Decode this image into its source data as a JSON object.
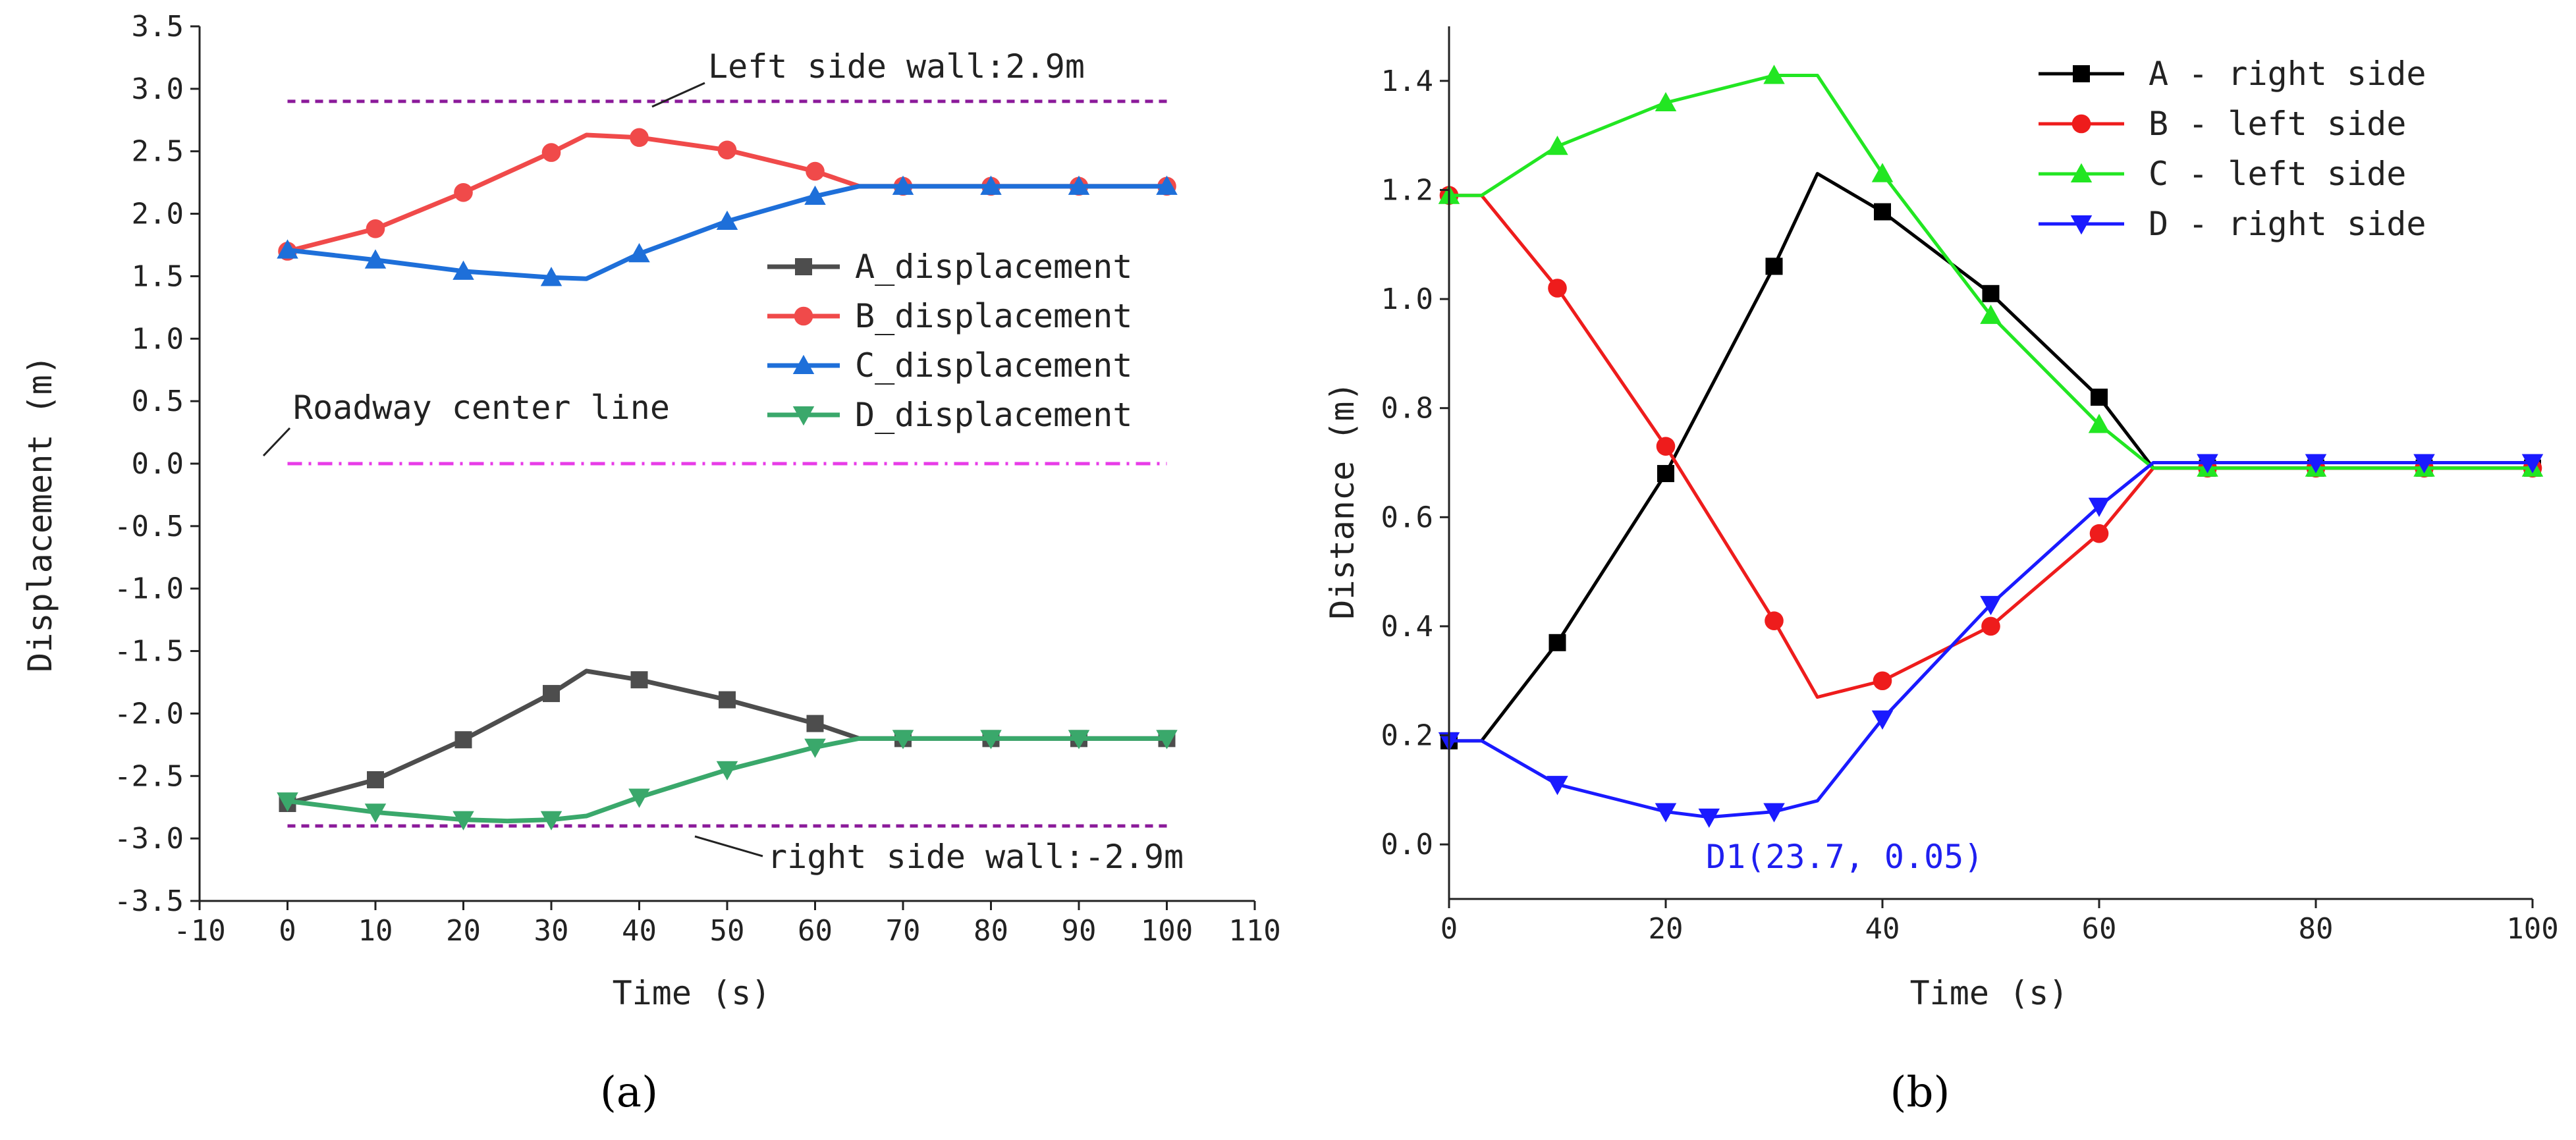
{
  "chart_data": [
    {
      "type": "line",
      "panel_label": "(a)",
      "xlabel": "Time (s)",
      "ylabel": "Displacement (m)",
      "xlim": [
        -10,
        110
      ],
      "ylim": [
        -3.5,
        3.5
      ],
      "xticks": [
        -10,
        0,
        10,
        20,
        30,
        40,
        50,
        60,
        70,
        80,
        90,
        100,
        110
      ],
      "yticks": [
        -3.5,
        -3.0,
        -2.5,
        -2.0,
        -1.5,
        -1.0,
        -0.5,
        0.0,
        0.5,
        1.0,
        1.5,
        2.0,
        2.5,
        3.0,
        3.5
      ],
      "reference_lines": [
        {
          "name": "Left side wall:2.9m",
          "y": 2.9,
          "color": "#8b1a9a"
        },
        {
          "name": "Roadway center line",
          "y": 0.0,
          "color": "#e83ce8"
        },
        {
          "name": "right side wall:-2.9m",
          "y": -2.9,
          "color": "#8b1a9a"
        }
      ],
      "legend_position": "center-right",
      "series": [
        {
          "name": "A_displacement",
          "color": "#4d4d4d",
          "marker": "square",
          "curve_x": [
            0,
            10,
            20,
            30,
            34,
            40,
            50,
            60,
            65,
            70,
            80,
            90,
            100
          ],
          "curve_y": [
            -2.72,
            -2.53,
            -2.21,
            -1.84,
            -1.66,
            -1.73,
            -1.89,
            -2.08,
            -2.2,
            -2.2,
            -2.2,
            -2.2,
            -2.2
          ],
          "marker_x": [
            0,
            10,
            20,
            30,
            40,
            50,
            60,
            70,
            80,
            90,
            100
          ],
          "marker_y": [
            -2.72,
            -2.53,
            -2.21,
            -1.84,
            -1.73,
            -1.89,
            -2.08,
            -2.2,
            -2.2,
            -2.2,
            -2.2
          ]
        },
        {
          "name": "B_displacement",
          "color": "#f04a4a",
          "marker": "circle",
          "curve_x": [
            0,
            10,
            20,
            30,
            34,
            40,
            50,
            60,
            65,
            70,
            80,
            90,
            100
          ],
          "curve_y": [
            1.7,
            1.88,
            2.17,
            2.49,
            2.63,
            2.61,
            2.51,
            2.34,
            2.22,
            2.22,
            2.22,
            2.22,
            2.22
          ],
          "marker_x": [
            0,
            10,
            20,
            30,
            40,
            50,
            60,
            70,
            80,
            90,
            100
          ],
          "marker_y": [
            1.7,
            1.88,
            2.17,
            2.49,
            2.61,
            2.51,
            2.34,
            2.22,
            2.22,
            2.22,
            2.22
          ]
        },
        {
          "name": "C_displacement",
          "color": "#1e6fd9",
          "marker": "triangle-up",
          "curve_x": [
            0,
            10,
            20,
            30,
            34,
            40,
            50,
            60,
            65,
            70,
            80,
            90,
            100
          ],
          "curve_y": [
            1.71,
            1.63,
            1.54,
            1.49,
            1.48,
            1.68,
            1.94,
            2.14,
            2.22,
            2.22,
            2.22,
            2.22,
            2.22
          ],
          "marker_x": [
            0,
            10,
            20,
            30,
            40,
            50,
            60,
            70,
            80,
            90,
            100
          ],
          "marker_y": [
            1.71,
            1.63,
            1.54,
            1.49,
            1.68,
            1.94,
            2.14,
            2.22,
            2.22,
            2.22,
            2.22
          ]
        },
        {
          "name": "D_displacement",
          "color": "#3aa86b",
          "marker": "triangle-down",
          "curve_x": [
            0,
            10,
            20,
            25,
            30,
            34,
            40,
            50,
            60,
            65,
            70,
            80,
            90,
            100
          ],
          "curve_y": [
            -2.7,
            -2.79,
            -2.85,
            -2.86,
            -2.85,
            -2.82,
            -2.67,
            -2.45,
            -2.27,
            -2.2,
            -2.2,
            -2.2,
            -2.2,
            -2.2
          ],
          "marker_x": [
            0,
            10,
            20,
            30,
            40,
            50,
            60,
            70,
            80,
            90,
            100
          ],
          "marker_y": [
            -2.7,
            -2.79,
            -2.85,
            -2.85,
            -2.67,
            -2.45,
            -2.27,
            -2.2,
            -2.2,
            -2.2,
            -2.2
          ]
        }
      ]
    },
    {
      "type": "line",
      "panel_label": "(b)",
      "xlabel": "Time (s)",
      "ylabel": "Distance (m)",
      "xlim": [
        0,
        100
      ],
      "ylim": [
        -0.1,
        1.5
      ],
      "xticks": [
        0,
        20,
        40,
        60,
        80,
        100
      ],
      "yticks": [
        0.0,
        0.2,
        0.4,
        0.6,
        0.8,
        1.0,
        1.2,
        1.4
      ],
      "annotations": [
        {
          "text": "D1(23.7, 0.05)",
          "x": 23.7,
          "y": 0.05
        }
      ],
      "legend_position": "top-right",
      "series": [
        {
          "name": "A - right side",
          "color": "#000000",
          "marker": "square",
          "curve_x": [
            0,
            3,
            10,
            20,
            30,
            34,
            40,
            50,
            60,
            65,
            70,
            80,
            90,
            100
          ],
          "curve_y": [
            0.19,
            0.19,
            0.37,
            0.68,
            1.06,
            1.23,
            1.16,
            1.01,
            0.82,
            0.69,
            0.69,
            0.69,
            0.69,
            0.69
          ],
          "marker_x": [
            0,
            10,
            20,
            30,
            40,
            50,
            60,
            70,
            80,
            90,
            100
          ],
          "marker_y": [
            0.19,
            0.37,
            0.68,
            1.06,
            1.16,
            1.01,
            0.82,
            0.69,
            0.69,
            0.69,
            0.69
          ]
        },
        {
          "name": "B - left side",
          "color": "#ee1c1c",
          "marker": "circle",
          "curve_x": [
            0,
            3,
            10,
            20,
            30,
            34,
            40,
            50,
            60,
            65,
            70,
            80,
            90,
            100
          ],
          "curve_y": [
            1.19,
            1.19,
            1.02,
            0.73,
            0.41,
            0.27,
            0.3,
            0.4,
            0.57,
            0.69,
            0.69,
            0.69,
            0.69,
            0.69
          ],
          "marker_x": [
            0,
            10,
            20,
            30,
            40,
            50,
            60,
            70,
            80,
            90,
            100
          ],
          "marker_y": [
            1.19,
            1.02,
            0.73,
            0.41,
            0.3,
            0.4,
            0.57,
            0.69,
            0.69,
            0.69,
            0.69
          ]
        },
        {
          "name": "C - left side",
          "color": "#22e622",
          "marker": "triangle-up",
          "curve_x": [
            0,
            3,
            10,
            20,
            30,
            34,
            40,
            50,
            60,
            65,
            70,
            80,
            90,
            100
          ],
          "curve_y": [
            1.19,
            1.19,
            1.28,
            1.36,
            1.41,
            1.41,
            1.23,
            0.97,
            0.77,
            0.69,
            0.69,
            0.69,
            0.69,
            0.69
          ],
          "marker_x": [
            0,
            10,
            20,
            30,
            40,
            50,
            60,
            70,
            80,
            90,
            100
          ],
          "marker_y": [
            1.19,
            1.28,
            1.36,
            1.41,
            1.23,
            0.97,
            0.77,
            0.69,
            0.69,
            0.69,
            0.69
          ]
        },
        {
          "name": "D - right side",
          "color": "#1a1aff",
          "marker": "triangle-down",
          "curve_x": [
            0,
            3,
            10,
            20,
            24,
            30,
            34,
            40,
            50,
            60,
            65,
            70,
            80,
            90,
            100
          ],
          "curve_y": [
            0.19,
            0.19,
            0.11,
            0.06,
            0.05,
            0.06,
            0.08,
            0.23,
            0.44,
            0.62,
            0.7,
            0.7,
            0.7,
            0.7,
            0.7
          ],
          "marker_x": [
            0,
            10,
            20,
            24,
            30,
            40,
            50,
            60,
            70,
            80,
            90,
            100
          ],
          "marker_y": [
            0.19,
            0.11,
            0.06,
            0.05,
            0.06,
            0.23,
            0.44,
            0.62,
            0.7,
            0.7,
            0.7,
            0.7
          ]
        }
      ]
    }
  ]
}
